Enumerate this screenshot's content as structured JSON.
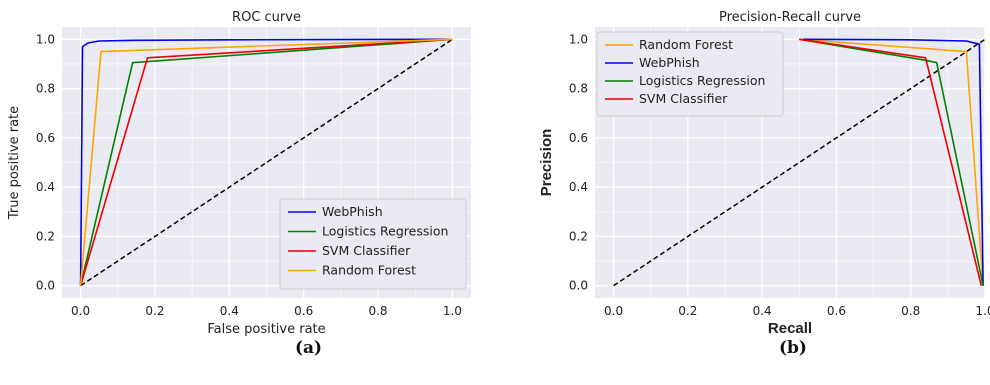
{
  "captions": [
    "(a)",
    "(b)"
  ],
  "chart_data": [
    {
      "type": "line",
      "title": "ROC curve",
      "xlabel": "False positive rate",
      "ylabel": "True positive rate",
      "xlim": [
        -0.05,
        1.05
      ],
      "ylim": [
        -0.05,
        1.05
      ],
      "xticks": [
        "0.0",
        "0.2",
        "0.4",
        "0.6",
        "0.8",
        "1.0"
      ],
      "yticks": [
        "0.0",
        "0.2",
        "0.4",
        "0.6",
        "0.8",
        "1.0"
      ],
      "grid": true,
      "legend": "lower right",
      "series": [
        {
          "name": "WebPhish",
          "color": "#0000ee",
          "x": [
            0.0,
            0.005,
            0.02,
            0.05,
            0.15,
            0.4,
            1.0
          ],
          "y": [
            0.0,
            0.97,
            0.985,
            0.993,
            0.996,
            0.998,
            1.0
          ]
        },
        {
          "name": "Logistics Regression",
          "color": "#008000",
          "x": [
            0.0,
            0.14,
            1.0
          ],
          "y": [
            0.0,
            0.905,
            1.0
          ]
        },
        {
          "name": "SVM Classifier",
          "color": "#ee0000",
          "x": [
            0.0,
            0.18,
            1.0
          ],
          "y": [
            0.0,
            0.925,
            1.0
          ]
        },
        {
          "name": "Random Forest",
          "color": "#ffa500",
          "x": [
            0.0,
            0.055,
            1.0
          ],
          "y": [
            0.0,
            0.95,
            1.0
          ]
        }
      ],
      "reference_line": {
        "x": [
          0.0,
          1.0
        ],
        "y": [
          0.0,
          1.0
        ],
        "color": "#000000"
      }
    },
    {
      "type": "line",
      "title": "Precision-Recall curve",
      "xlabel": "Recall",
      "ylabel": "Precision",
      "xlim": [
        -0.05,
        1.0
      ],
      "ylim": [
        -0.05,
        1.05
      ],
      "xticks": [
        "0.0",
        "0.2",
        "0.4",
        "0.6",
        "0.8",
        "1.0"
      ],
      "yticks": [
        "0.0",
        "0.2",
        "0.4",
        "0.6",
        "0.8",
        "1.0"
      ],
      "grid": true,
      "legend": "upper left",
      "series": [
        {
          "name": "Random Forest",
          "color": "#ffa500",
          "x": [
            0.5,
            0.95,
            0.995
          ],
          "y": [
            1.0,
            0.95,
            0.0
          ]
        },
        {
          "name": "WebPhish",
          "color": "#0000ee",
          "x": [
            0.51,
            0.8,
            0.95,
            0.985,
            0.995
          ],
          "y": [
            1.0,
            0.998,
            0.993,
            0.98,
            0.0
          ]
        },
        {
          "name": "Logistics Regression",
          "color": "#008000",
          "x": [
            0.5,
            0.84,
            0.87,
            0.995
          ],
          "y": [
            1.0,
            0.915,
            0.905,
            0.0
          ]
        },
        {
          "name": "SVM Classifier",
          "color": "#ee0000",
          "x": [
            0.5,
            0.84,
            0.99
          ],
          "y": [
            1.0,
            0.925,
            0.0
          ]
        }
      ],
      "reference_line": {
        "x": [
          0.0,
          1.0
        ],
        "y": [
          0.0,
          1.0
        ],
        "color": "#000000"
      }
    }
  ]
}
